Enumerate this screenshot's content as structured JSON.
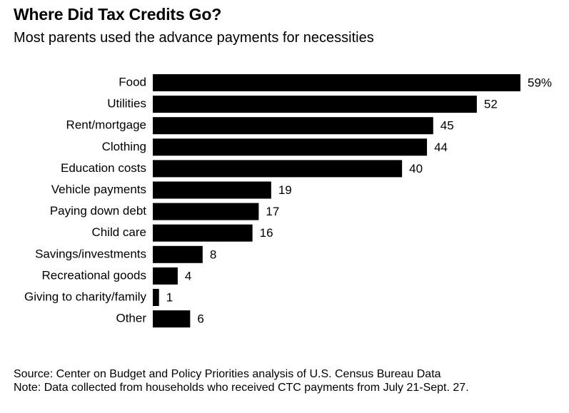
{
  "header": {
    "title": "Where Did Tax Credits Go?",
    "subtitle": "Most parents used the advance payments for necessities"
  },
  "footer": {
    "source": "Source: Center on Budget and Policy Priorities analysis of U.S. Census Bureau Data",
    "note": "Note: Data collected from households who received CTC payments from July 21-Sept. 27."
  },
  "chart_data": {
    "type": "bar",
    "orientation": "horizontal",
    "title": "Where Did Tax Credits Go?",
    "subtitle": "Most parents used the advance payments for necessities",
    "xlabel": "",
    "ylabel": "",
    "unit": "%",
    "categories": [
      "Food",
      "Utilities",
      "Rent/mortgage",
      "Clothing",
      "Education costs",
      "Vehicle payments",
      "Paying down debt",
      "Child care",
      "Savings/investments",
      "Recreational goods",
      "Giving to charity/family",
      "Other"
    ],
    "values": [
      59,
      52,
      45,
      44,
      40,
      19,
      17,
      16,
      8,
      4,
      1,
      6
    ],
    "value_labels": [
      "59%",
      "52",
      "45",
      "44",
      "40",
      "19",
      "17",
      "16",
      "8",
      "4",
      "1",
      "6"
    ],
    "bar_color": "#000000",
    "xlim": [
      0,
      59
    ],
    "grid": false,
    "legend": "none"
  }
}
